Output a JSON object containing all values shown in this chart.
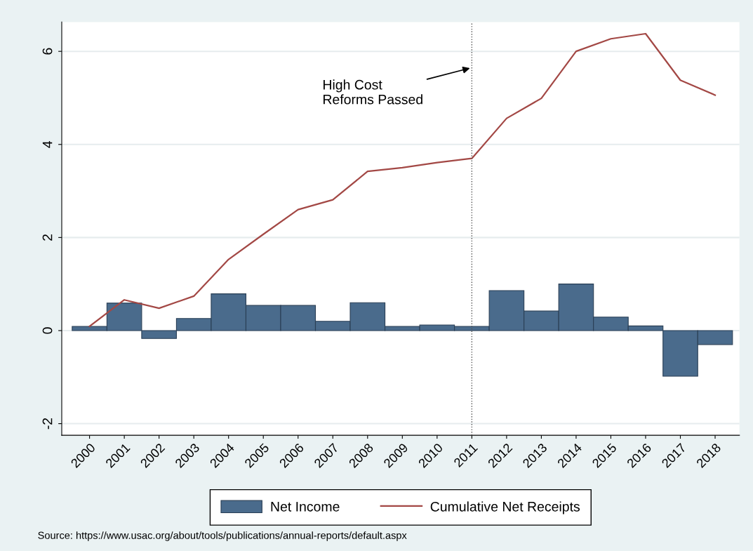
{
  "chart_data": {
    "type": "bar",
    "categories": [
      "2000",
      "2001",
      "2002",
      "2003",
      "2004",
      "2005",
      "2006",
      "2007",
      "2008",
      "2009",
      "2010",
      "2011",
      "2012",
      "2013",
      "2014",
      "2015",
      "2016",
      "2017",
      "2018"
    ],
    "series": [
      {
        "name": "Net Income",
        "type": "bar",
        "color": "#4a6b8c",
        "values": [
          0.09,
          0.59,
          -0.17,
          0.26,
          0.79,
          0.54,
          0.54,
          0.2,
          0.6,
          0.09,
          0.12,
          0.09,
          0.86,
          0.42,
          1.0,
          0.29,
          0.1,
          -0.98,
          -0.3
        ]
      },
      {
        "name": "Cumulative Net Receipts",
        "type": "line",
        "color": "#a34845",
        "values": [
          0.09,
          0.66,
          0.48,
          0.74,
          1.53,
          2.07,
          2.6,
          2.81,
          3.42,
          3.5,
          3.61,
          3.7,
          4.56,
          4.99,
          6.0,
          6.27,
          6.38,
          5.38,
          5.06
        ]
      }
    ],
    "ylim": [
      -2.25,
      6.63
    ],
    "yticks": [
      -2,
      0,
      2,
      4,
      6
    ],
    "grid": "y",
    "legend": "bottom",
    "ref_lines": [
      {
        "axis": "x",
        "value": "2011",
        "color": "#555555",
        "line_style": "dotted"
      }
    ],
    "annotations": [
      {
        "text": "High Cost\nReforms Passed",
        "x": "2011",
        "y": 5.65
      },
      "Source: https://www.usac.org/about/tools/publications/annual-reports/default.aspx"
    ]
  }
}
